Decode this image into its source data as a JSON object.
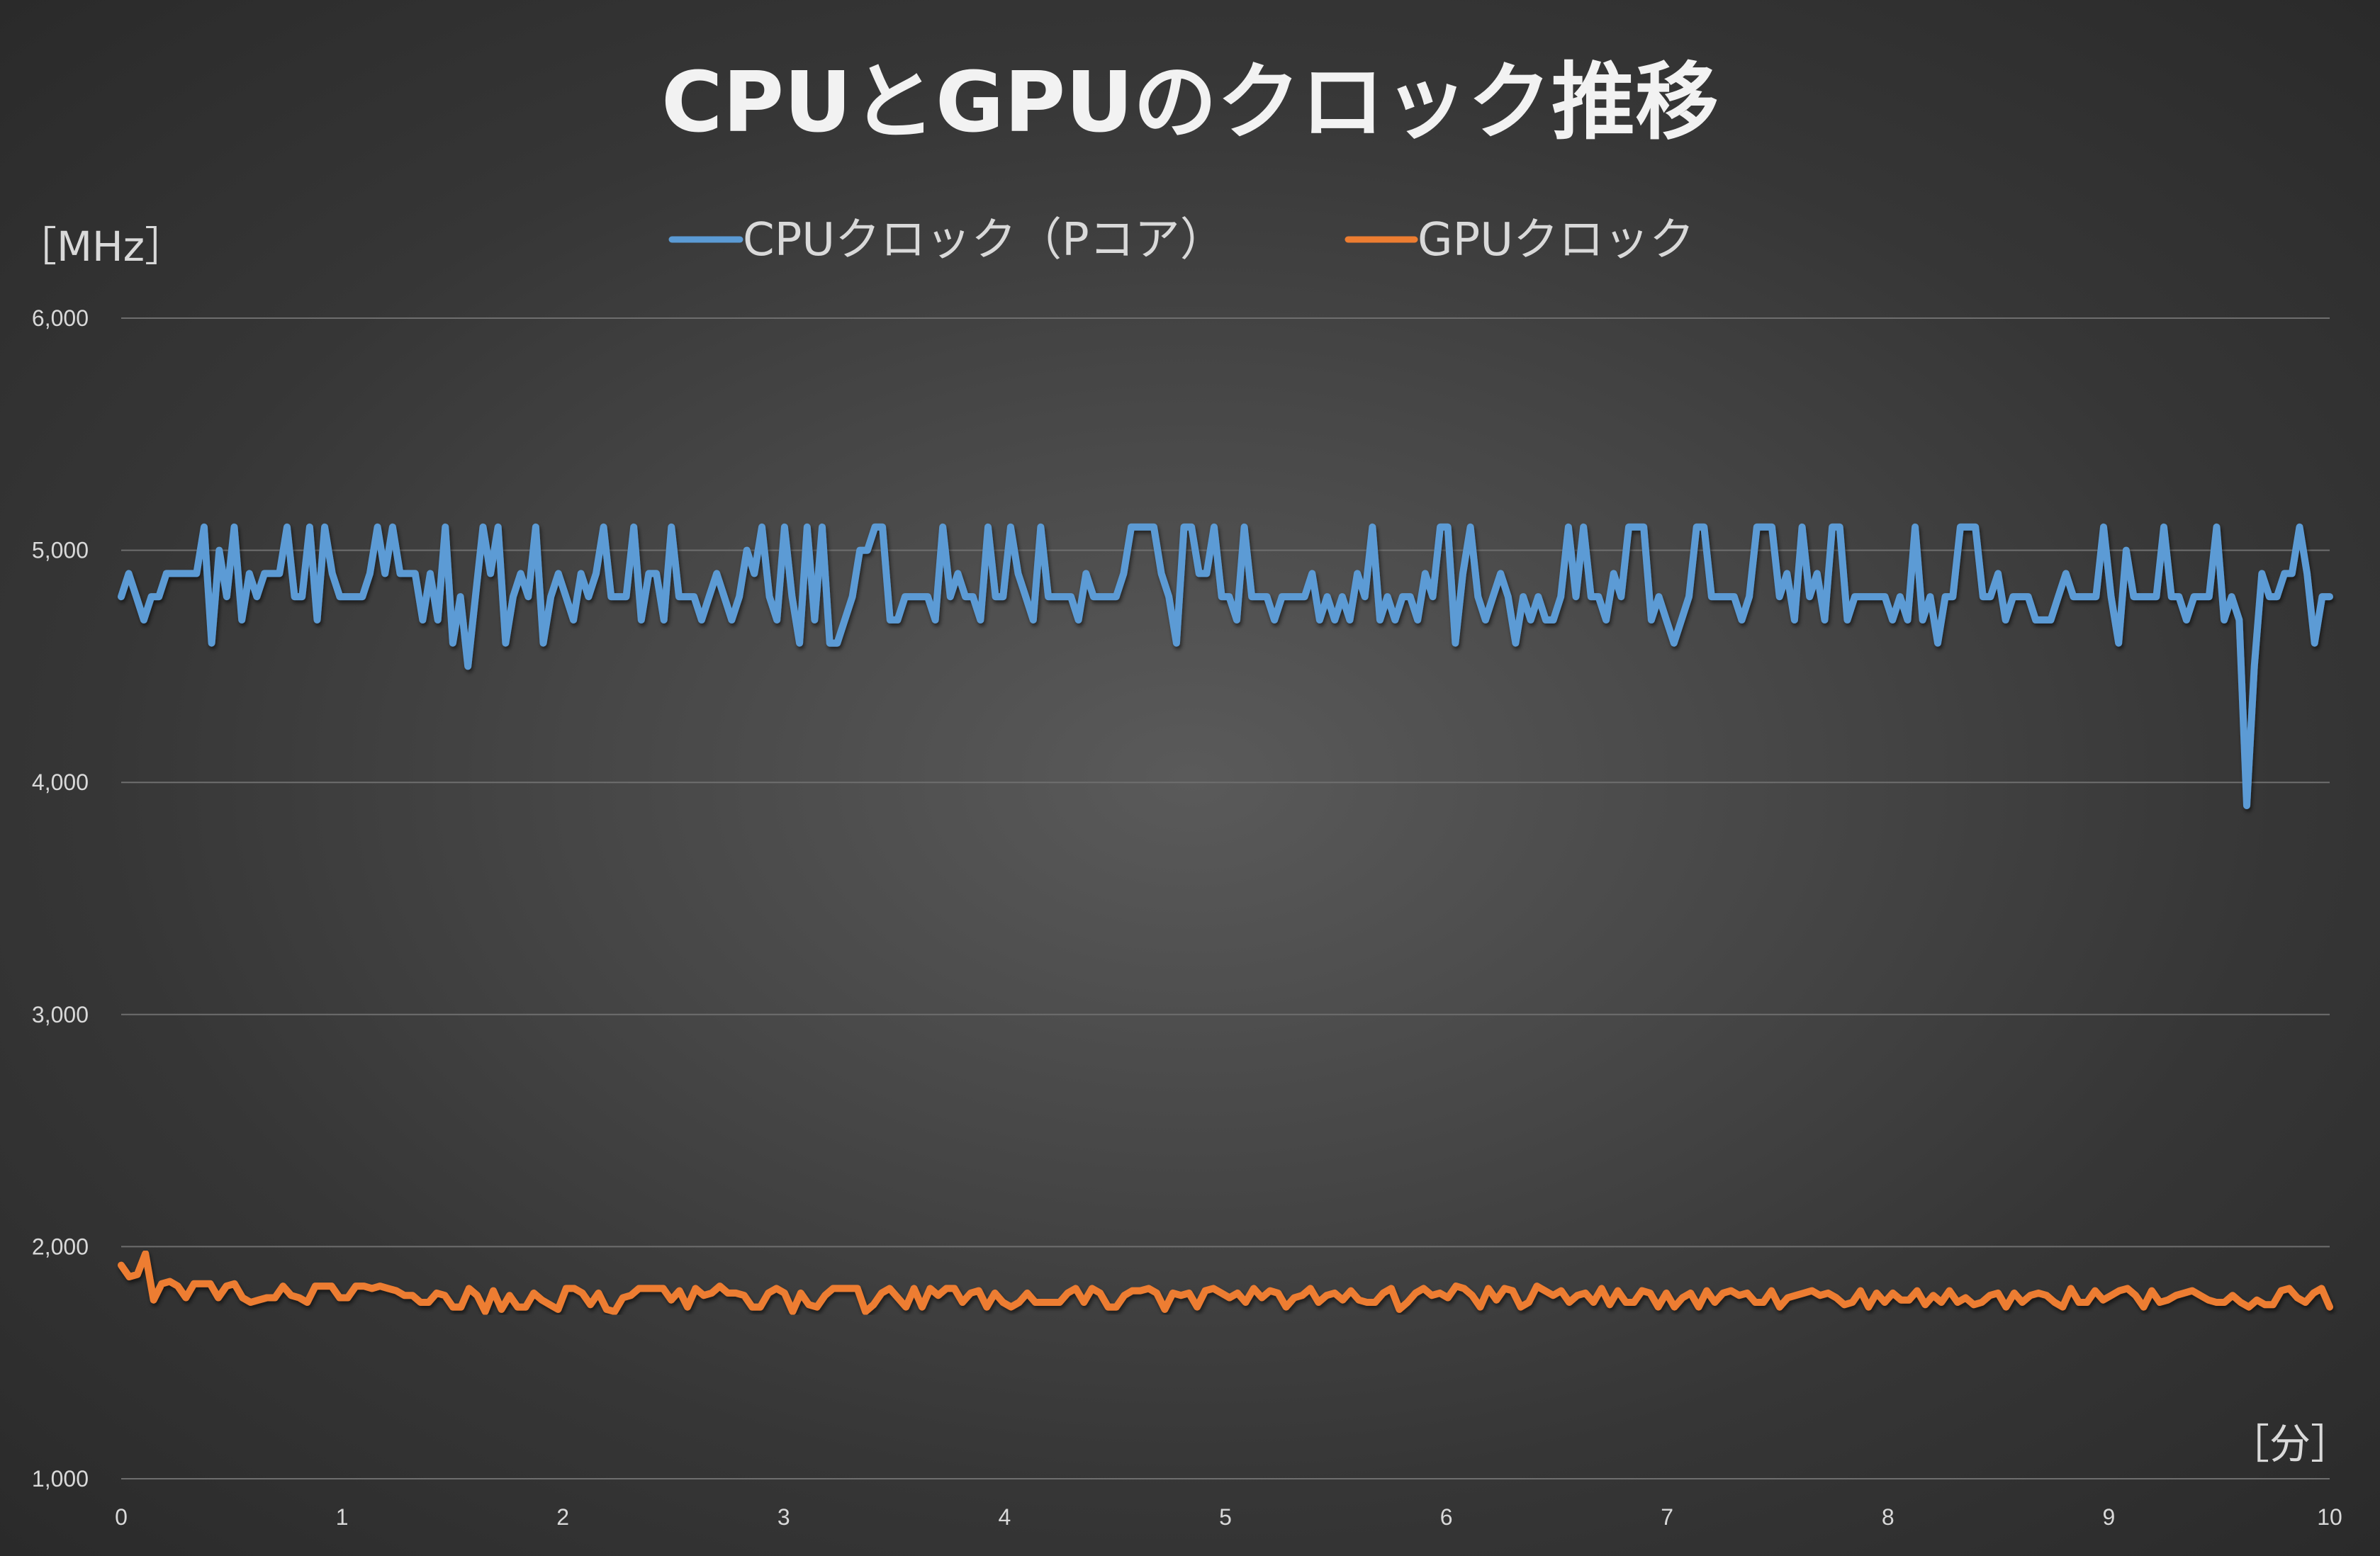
{
  "chart_data": {
    "type": "line",
    "title": "CPUとGPUのクロック推移",
    "ylabel": "［MHz］",
    "xlabel": "［分］",
    "xlim": [
      0,
      10
    ],
    "ylim": [
      1000,
      6000
    ],
    "x_ticks": [
      "0",
      "1",
      "2",
      "3",
      "4",
      "5",
      "6",
      "7",
      "8",
      "9",
      "10"
    ],
    "y_ticks": [
      "1,000",
      "2,000",
      "3,000",
      "4,000",
      "5,000",
      "6,000"
    ],
    "grid": true,
    "legend_position": "top",
    "series": [
      {
        "name": "CPUクロック（Pコア）",
        "color": "#5b9bd5",
        "values": [
          4800,
          4900,
          4800,
          4700,
          4800,
          4800,
          4900,
          4900,
          4900,
          4900,
          4900,
          5100,
          4600,
          5000,
          4800,
          5100,
          4700,
          4900,
          4800,
          4900,
          4900,
          4900,
          5100,
          4800,
          4800,
          5100,
          4700,
          5100,
          4900,
          4800,
          4800,
          4800,
          4800,
          4900,
          5100,
          4900,
          5100,
          4900,
          4900,
          4900,
          4700,
          4900,
          4700,
          5100,
          4600,
          4800,
          4500,
          4800,
          5100,
          4900,
          5100,
          4600,
          4800,
          4900,
          4800,
          5100,
          4600,
          4800,
          4900,
          4800,
          4700,
          4900,
          4800,
          4900,
          5100,
          4800,
          4800,
          4800,
          5100,
          4700,
          4900,
          4900,
          4700,
          5100,
          4800,
          4800,
          4800,
          4700,
          4800,
          4900,
          4800,
          4700,
          4800,
          5000,
          4900,
          5100,
          4800,
          4700,
          5100,
          4800,
          4600,
          5100,
          4700,
          5100,
          4600,
          4600,
          4700,
          4800,
          5000,
          5000,
          5100,
          5100,
          4700,
          4700,
          4800,
          4800,
          4800,
          4800,
          4700,
          5100,
          4800,
          4900,
          4800,
          4800,
          4700,
          5100,
          4800,
          4800,
          5100,
          4900,
          4800,
          4700,
          5100,
          4800,
          4800,
          4800,
          4800,
          4700,
          4900,
          4800,
          4800,
          4800,
          4800,
          4900,
          5100,
          5100,
          5100,
          5100,
          4900,
          4800,
          4600,
          5100,
          5100,
          4900,
          4900,
          5100,
          4800,
          4800,
          4700,
          5100,
          4800,
          4800,
          4800,
          4700,
          4800,
          4800,
          4800,
          4800,
          4900,
          4700,
          4800,
          4700,
          4800,
          4700,
          4900,
          4800,
          5100,
          4700,
          4800,
          4700,
          4800,
          4800,
          4700,
          4900,
          4800,
          5100,
          5100,
          4600,
          4900,
          5100,
          4800,
          4700,
          4800,
          4900,
          4800,
          4600,
          4800,
          4700,
          4800,
          4700,
          4700,
          4800,
          5100,
          4800,
          5100,
          4800,
          4800,
          4700,
          4900,
          4800,
          5100,
          5100,
          5100,
          4700,
          4800,
          4700,
          4600,
          4700,
          4800,
          5100,
          5100,
          4800,
          4800,
          4800,
          4800,
          4700,
          4800,
          5100,
          5100,
          5100,
          4800,
          4900,
          4700,
          5100,
          4800,
          4900,
          4700,
          5100,
          5100,
          4700,
          4800,
          4800,
          4800,
          4800,
          4800,
          4700,
          4800,
          4700,
          5100,
          4700,
          4800,
          4600,
          4800,
          4800,
          5100,
          5100,
          5100,
          4800,
          4800,
          4900,
          4700,
          4800,
          4800,
          4800,
          4700,
          4700,
          4700,
          4800,
          4900,
          4800,
          4800,
          4800,
          4800,
          5100,
          4800,
          4600,
          5000,
          4800,
          4800,
          4800,
          4800,
          5100,
          4800,
          4800,
          4700,
          4800,
          4800,
          4800,
          5100,
          4700,
          4800,
          4700,
          3900,
          4500,
          4900,
          4800,
          4800,
          4900,
          4900,
          5100,
          4900,
          4600,
          4800,
          4800
        ]
      },
      {
        "name": "GPUクロック",
        "color": "#ed7d31",
        "values": [
          1920,
          1870,
          1880,
          1970,
          1770,
          1840,
          1850,
          1830,
          1780,
          1840,
          1840,
          1840,
          1780,
          1830,
          1840,
          1780,
          1760,
          1770,
          1780,
          1780,
          1830,
          1790,
          1780,
          1760,
          1830,
          1830,
          1830,
          1780,
          1780,
          1830,
          1830,
          1820,
          1830,
          1820,
          1810,
          1790,
          1790,
          1760,
          1760,
          1800,
          1790,
          1740,
          1740,
          1820,
          1790,
          1720,
          1810,
          1730,
          1790,
          1740,
          1740,
          1800,
          1770,
          1750,
          1730,
          1820,
          1820,
          1800,
          1750,
          1800,
          1730,
          1720,
          1780,
          1790,
          1820,
          1820,
          1820,
          1820,
          1770,
          1810,
          1740,
          1820,
          1790,
          1800,
          1830,
          1800,
          1800,
          1790,
          1740,
          1740,
          1800,
          1820,
          1800,
          1720,
          1800,
          1750,
          1740,
          1790,
          1820,
          1820,
          1820,
          1820,
          1720,
          1750,
          1800,
          1820,
          1780,
          1740,
          1820,
          1740,
          1820,
          1790,
          1820,
          1820,
          1760,
          1800,
          1810,
          1740,
          1800,
          1760,
          1740,
          1760,
          1800,
          1760,
          1760,
          1760,
          1760,
          1800,
          1820,
          1760,
          1820,
          1800,
          1740,
          1740,
          1790,
          1810,
          1810,
          1820,
          1800,
          1730,
          1800,
          1790,
          1800,
          1740,
          1810,
          1820,
          1800,
          1780,
          1800,
          1760,
          1820,
          1780,
          1810,
          1800,
          1740,
          1780,
          1790,
          1820,
          1760,
          1790,
          1800,
          1770,
          1810,
          1770,
          1760,
          1760,
          1800,
          1820,
          1730,
          1760,
          1800,
          1820,
          1790,
          1800,
          1780,
          1830,
          1820,
          1790,
          1740,
          1820,
          1770,
          1820,
          1810,
          1740,
          1760,
          1830,
          1810,
          1790,
          1810,
          1760,
          1790,
          1800,
          1760,
          1820,
          1750,
          1810,
          1760,
          1760,
          1810,
          1800,
          1740,
          1800,
          1740,
          1780,
          1800,
          1740,
          1810,
          1760,
          1800,
          1810,
          1790,
          1800,
          1760,
          1760,
          1810,
          1740,
          1780,
          1790,
          1800,
          1810,
          1790,
          1800,
          1780,
          1750,
          1760,
          1810,
          1740,
          1800,
          1760,
          1800,
          1770,
          1770,
          1810,
          1750,
          1790,
          1760,
          1810,
          1760,
          1780,
          1750,
          1760,
          1790,
          1800,
          1740,
          1800,
          1760,
          1790,
          1800,
          1790,
          1760,
          1740,
          1820,
          1760,
          1760,
          1810,
          1770,
          1790,
          1810,
          1820,
          1790,
          1740,
          1810,
          1760,
          1770,
          1790,
          1800,
          1810,
          1790,
          1770,
          1760,
          1760,
          1790,
          1760,
          1740,
          1770,
          1750,
          1750,
          1810,
          1820,
          1780,
          1760,
          1800,
          1820,
          1740
        ]
      }
    ]
  }
}
